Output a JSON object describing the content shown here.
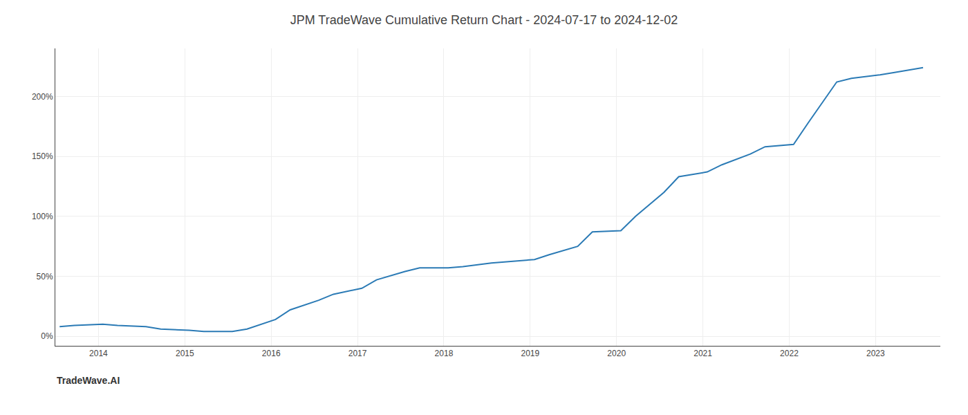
{
  "chart_data": {
    "type": "line",
    "title": "JPM TradeWave Cumulative Return Chart - 2024-07-17 to 2024-12-02",
    "annotations": [
      "TradeWave.AI"
    ],
    "x": [
      2013.55,
      2013.72,
      2014.05,
      2014.22,
      2014.55,
      2014.72,
      2015.05,
      2015.22,
      2015.55,
      2015.72,
      2016.05,
      2016.22,
      2016.55,
      2016.72,
      2017.05,
      2017.22,
      2017.55,
      2017.72,
      2018.05,
      2018.22,
      2018.55,
      2018.72,
      2019.05,
      2019.22,
      2019.55,
      2019.72,
      2020.05,
      2020.22,
      2020.55,
      2020.72,
      2021.05,
      2021.22,
      2021.55,
      2021.72,
      2022.05,
      2022.22,
      2022.55,
      2022.72,
      2023.05,
      2023.22,
      2023.55
    ],
    "values": [
      8,
      9,
      10,
      9,
      8,
      6,
      5,
      4,
      4,
      6,
      14,
      22,
      30,
      35,
      40,
      47,
      54,
      57,
      57,
      58,
      61,
      62,
      64,
      68,
      75,
      87,
      88,
      100,
      120,
      133,
      137,
      143,
      152,
      158,
      160,
      178,
      212,
      215,
      218,
      220,
      224
    ],
    "color": "#2a7ab5",
    "xlim": [
      2013.5,
      2023.75
    ],
    "xticks": [
      2014,
      2015,
      2016,
      2017,
      2018,
      2019,
      2020,
      2021,
      2022,
      2023
    ],
    "ylim": [
      -8,
      240
    ],
    "yticks": [
      {
        "value": 0,
        "label": "0%"
      },
      {
        "value": 50,
        "label": "50%"
      },
      {
        "value": 100,
        "label": "100%"
      },
      {
        "value": 150,
        "label": "150%"
      },
      {
        "value": 200,
        "label": "200%"
      }
    ],
    "grid": true
  }
}
